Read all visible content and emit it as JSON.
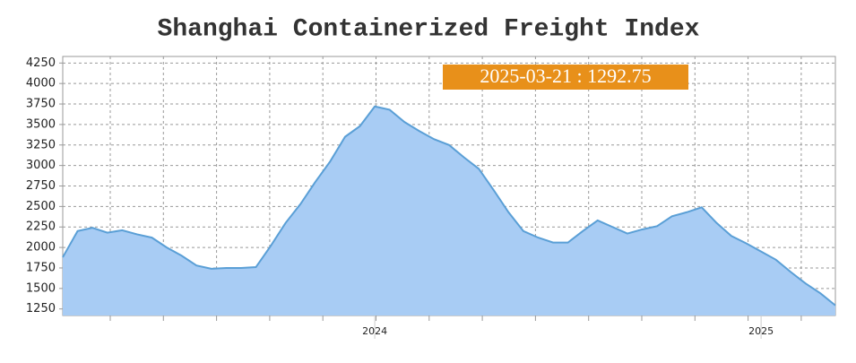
{
  "chart_data": {
    "type": "area",
    "title": "Shanghai Containerized Freight Index",
    "annotation": "2025-03-21 : 1292.75",
    "categories": [
      null,
      null,
      null,
      null,
      null,
      null,
      null,
      null,
      null,
      null,
      null,
      null,
      null,
      null,
      null,
      null,
      null,
      null,
      null,
      null,
      null,
      "2024",
      null,
      null,
      null,
      null,
      null,
      null,
      null,
      null,
      null,
      null,
      null,
      null,
      null,
      null,
      null,
      null,
      null,
      null,
      null,
      null,
      null,
      null,
      null,
      null,
      null,
      "2025",
      null,
      null,
      null,
      null,
      null
    ],
    "values": [
      1880,
      2200,
      2240,
      2180,
      2210,
      2160,
      2120,
      2000,
      1900,
      1780,
      1740,
      1750,
      1750,
      1760,
      2020,
      2300,
      2530,
      2800,
      3050,
      3350,
      3480,
      3720,
      3680,
      3530,
      3420,
      3320,
      3250,
      3100,
      2960,
      2700,
      2430,
      2200,
      2120,
      2060,
      2060,
      2200,
      2330,
      2250,
      2170,
      2220,
      2260,
      2380,
      2430,
      2490,
      2300,
      2140,
      2050,
      1950,
      1850,
      1700,
      1560,
      1440,
      1292.75
    ],
    "color": "#a8ccf4",
    "line_color": "#5a9fd6",
    "annotation_color": "#e8901a",
    "ylim": [
      1170,
      4330
    ],
    "yticks": [
      1250,
      1500,
      1750,
      2000,
      2250,
      2500,
      2750,
      3000,
      3250,
      3500,
      3750,
      4000,
      4250
    ],
    "grid": true
  }
}
